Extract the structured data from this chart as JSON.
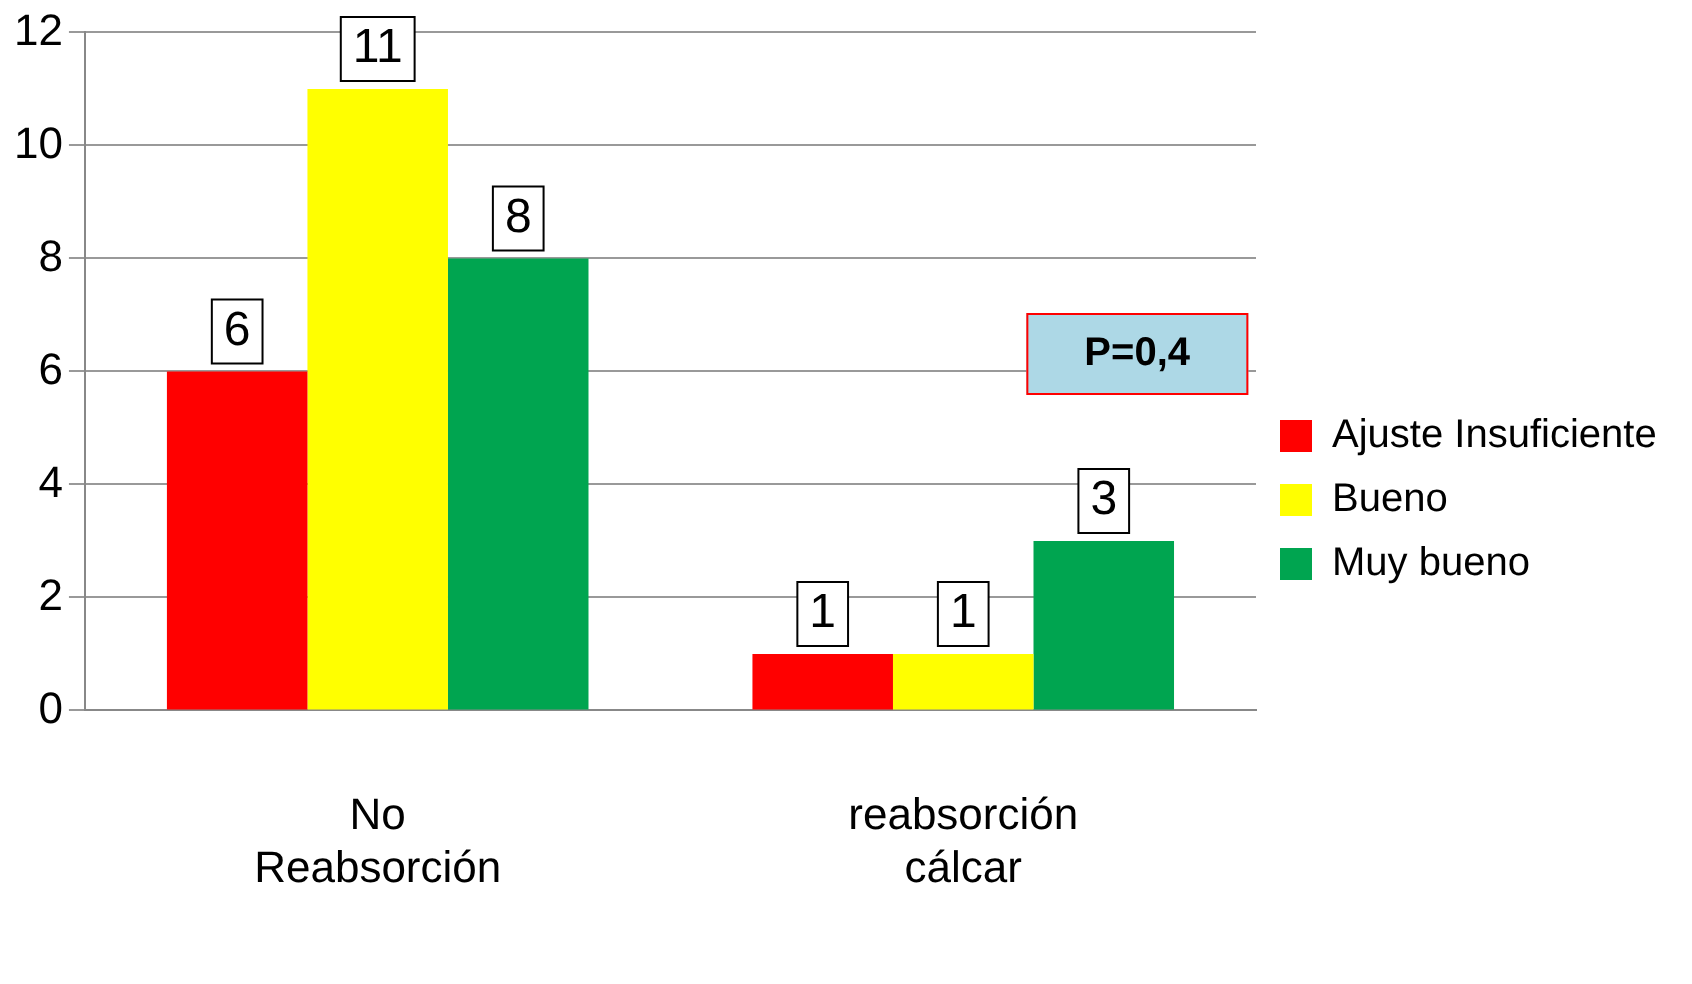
{
  "chart_data": {
    "type": "bar",
    "categories": [
      "No Reabsorción",
      "reabsorción cálcar"
    ],
    "series": [
      {
        "name": "Ajuste Insuficiente",
        "color": "#ff0000",
        "values": [
          6,
          1
        ]
      },
      {
        "name": "Bueno",
        "color": "#ffff00",
        "values": [
          11,
          1
        ]
      },
      {
        "name": "Muy bueno",
        "color": "#00a550",
        "values": [
          8,
          3
        ]
      }
    ],
    "ylim": [
      0,
      12
    ],
    "yticks": [
      0,
      2,
      4,
      6,
      8,
      10,
      12
    ],
    "grid": "y",
    "legend": "right",
    "data_labels": true,
    "annotations": [
      "P=0,4"
    ]
  }
}
